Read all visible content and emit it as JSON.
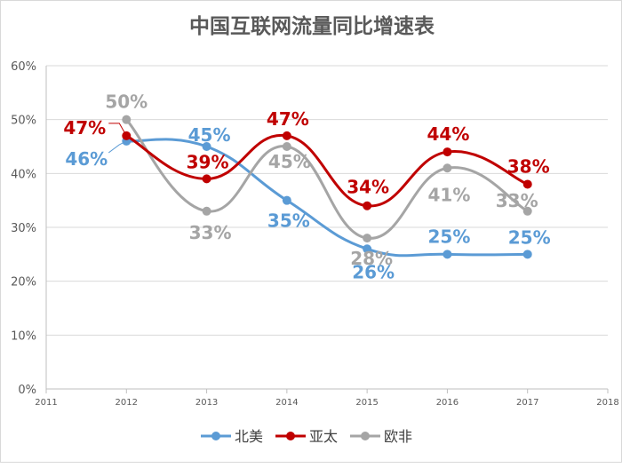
{
  "chart_data": {
    "type": "line",
    "title": "中国互联网流量同比增速表",
    "xlabel": "",
    "ylabel": "",
    "x_ticks": [
      "2011",
      "2012",
      "2013",
      "2014",
      "2015",
      "2016",
      "2017",
      "2018"
    ],
    "y_ticks": [
      "0%",
      "10%",
      "20%",
      "30%",
      "40%",
      "50%",
      "60%"
    ],
    "xlim": [
      2011,
      2018
    ],
    "ylim": [
      0,
      60
    ],
    "grid": true,
    "smooth": true,
    "legend": "bottom",
    "x": [
      2012,
      2013,
      2014,
      2015,
      2016,
      2017
    ],
    "series": [
      {
        "name": "北美",
        "color": "#5b9bd5",
        "values": [
          46,
          45,
          35,
          26,
          25,
          25
        ],
        "labels": [
          "46%",
          "45%",
          "35%",
          "26%",
          "25%",
          "25%"
        ]
      },
      {
        "name": "亚太",
        "color": "#c00000",
        "values": [
          47,
          39,
          47,
          34,
          44,
          38
        ],
        "labels": [
          "47%",
          "39%",
          "47%",
          "34%",
          "44%",
          "38%"
        ]
      },
      {
        "name": "欧非",
        "color": "#a5a5a5",
        "values": [
          50,
          33,
          45,
          28,
          41,
          33
        ],
        "labels": [
          "50%",
          "33%",
          "45%",
          "28%",
          "41%",
          "33%"
        ]
      }
    ]
  }
}
